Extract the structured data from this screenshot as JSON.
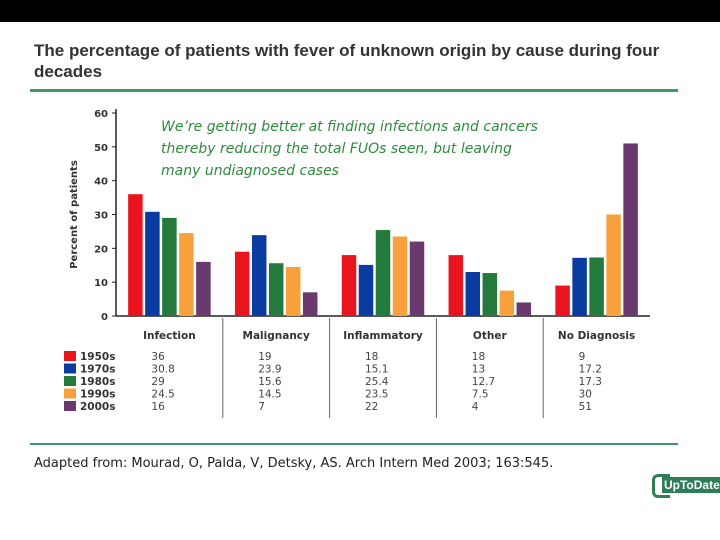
{
  "header": {
    "title": "The percentage of patients with fever of unknown origin by cause during four decades"
  },
  "footer": {
    "citation": "Adapted from: Mourad, O, Palda, V, Detsky, AS. Arch Intern Med 2003; 163:545.",
    "logo_text": "UpToDate"
  },
  "colors": {
    "accent": "#3a9a6a",
    "s1950": "#e8141e",
    "s1970": "#0a3ca0",
    "s1980": "#237a3c",
    "s1990": "#f7a13c",
    "s2000": "#6a3a6e"
  },
  "chart_data": {
    "type": "bar",
    "ylabel": "Percent of patients",
    "ylim": [
      0,
      60
    ],
    "yticks": [
      "0",
      "10",
      "20",
      "30",
      "40",
      "50",
      "60"
    ],
    "categories": [
      "Infection",
      "Malignancy",
      "Inflammatory",
      "Other",
      "No Diagnosis"
    ],
    "series": [
      {
        "name": "1950s",
        "color": "#e8141e",
        "values": [
          36,
          19,
          18,
          18,
          9
        ],
        "labels": [
          "36",
          "19",
          "18",
          "18",
          "9"
        ]
      },
      {
        "name": "1970s",
        "color": "#0a3ca0",
        "values": [
          30.8,
          23.9,
          15.1,
          13,
          17.2
        ],
        "labels": [
          "30.8",
          "23.9",
          "15.1",
          "13",
          "17.2"
        ]
      },
      {
        "name": "1980s",
        "color": "#237a3c",
        "values": [
          29,
          15.6,
          25.4,
          12.7,
          17.3
        ],
        "labels": [
          "29",
          "15.6",
          "25.4",
          "12.7",
          "17.3"
        ]
      },
      {
        "name": "1990s",
        "color": "#f7a13c",
        "values": [
          24.5,
          14.5,
          23.5,
          7.5,
          30
        ],
        "labels": [
          "24.5",
          "14.5",
          "23.5",
          "7.5",
          "30"
        ]
      },
      {
        "name": "2000s",
        "color": "#6a3a6e",
        "values": [
          16,
          7,
          22,
          4,
          51
        ],
        "labels": [
          "16",
          "7",
          "22",
          "4",
          "51"
        ]
      }
    ],
    "annotation": [
      "We’re getting better at finding infections and cancers",
      "thereby reducing the total FUOs seen, but leaving",
      "many undiagnosed cases"
    ],
    "legend_position": "bottom-left table"
  }
}
